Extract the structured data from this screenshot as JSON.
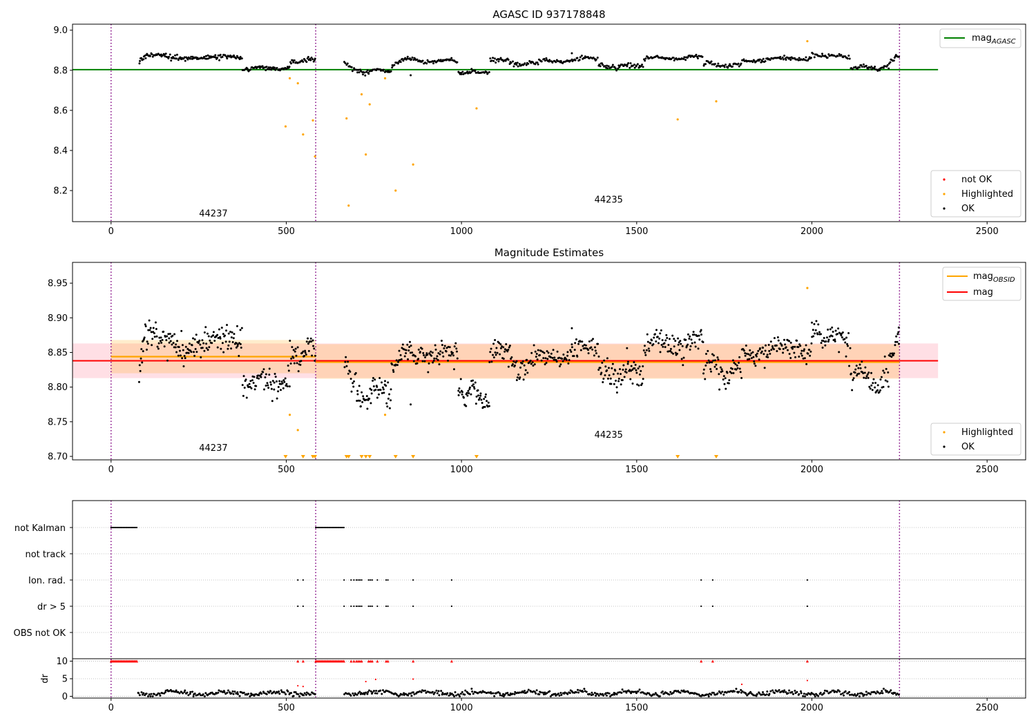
{
  "chart_data": [
    {
      "id": "panel1",
      "type": "scatter",
      "title": "AGASC ID 937178848",
      "xlim": [
        -110,
        2610
      ],
      "ylim": [
        8.045,
        9.03
      ],
      "xticks": [
        0,
        500,
        1000,
        1500,
        2000,
        2500
      ],
      "yticks": [
        8.2,
        8.4,
        8.6,
        8.8,
        9.0
      ],
      "ytick_labels": [
        "8.2",
        "8.4",
        "8.6",
        "8.8",
        "9.0"
      ],
      "grid": false,
      "vlines": [
        0,
        584,
        2250
      ],
      "obsid_labels": [
        {
          "text": "44237",
          "x": 292,
          "y": 8.07
        },
        {
          "text": "44235",
          "x": 1420,
          "y": 8.14
        }
      ],
      "hline": {
        "name": "mag_AGASC",
        "y": 8.803,
        "x0": -110,
        "x1": 2360,
        "color": "#008000"
      },
      "legend_top": {
        "placement": "top-right",
        "entries": [
          {
            "label": "mag",
            "sub": "AGASC",
            "color": "#008000"
          }
        ]
      },
      "legend_bottom": {
        "placement": "bottom-right",
        "entries": [
          {
            "label": "not OK",
            "color": "#ff0000"
          },
          {
            "label": "Highlighted",
            "color": "#ffa500"
          },
          {
            "label": "OK",
            "color": "#000000"
          }
        ]
      },
      "ok_segments": [
        {
          "x0": 80,
          "x1": 95,
          "y0": 8.84,
          "y1": 8.87,
          "amp": 0.006,
          "spread": 0.005,
          "n": 8
        },
        {
          "x0": 95,
          "x1": 375,
          "y0": 8.87,
          "y1": 8.86,
          "amp": 0.008,
          "spread": 0.006,
          "n": 120
        },
        {
          "x0": 375,
          "x1": 510,
          "y0": 8.81,
          "y1": 8.81,
          "amp": 0.006,
          "spread": 0.006,
          "n": 55
        },
        {
          "x0": 510,
          "x1": 584,
          "y0": 8.84,
          "y1": 8.855,
          "amp": 0.006,
          "spread": 0.006,
          "n": 30
        },
        {
          "x0": 665,
          "x1": 700,
          "y0": 8.84,
          "y1": 8.8,
          "amp": 0.004,
          "spread": 0.005,
          "n": 12
        },
        {
          "x0": 700,
          "x1": 800,
          "y0": 8.795,
          "y1": 8.8,
          "amp": 0.006,
          "spread": 0.006,
          "n": 40
        },
        {
          "x0": 800,
          "x1": 830,
          "y0": 8.82,
          "y1": 8.85,
          "amp": 0.004,
          "spread": 0.005,
          "n": 12
        },
        {
          "x0": 830,
          "x1": 990,
          "y0": 8.85,
          "y1": 8.845,
          "amp": 0.006,
          "spread": 0.005,
          "n": 60
        },
        {
          "x0": 990,
          "x1": 1080,
          "y0": 8.79,
          "y1": 8.79,
          "amp": 0.005,
          "spread": 0.005,
          "n": 35
        },
        {
          "x0": 1080,
          "x1": 1220,
          "y0": 8.85,
          "y1": 8.83,
          "amp": 0.008,
          "spread": 0.006,
          "n": 50
        },
        {
          "x0": 1220,
          "x1": 1390,
          "y0": 8.84,
          "y1": 8.86,
          "amp": 0.006,
          "spread": 0.005,
          "n": 60
        },
        {
          "x0": 1390,
          "x1": 1520,
          "y0": 8.82,
          "y1": 8.82,
          "amp": 0.005,
          "spread": 0.006,
          "n": 50
        },
        {
          "x0": 1520,
          "x1": 1690,
          "y0": 8.86,
          "y1": 8.865,
          "amp": 0.006,
          "spread": 0.005,
          "n": 65
        },
        {
          "x0": 1690,
          "x1": 1800,
          "y0": 8.83,
          "y1": 8.82,
          "amp": 0.006,
          "spread": 0.006,
          "n": 40
        },
        {
          "x0": 1800,
          "x1": 2000,
          "y0": 8.85,
          "y1": 8.86,
          "amp": 0.006,
          "spread": 0.005,
          "n": 75
        },
        {
          "x0": 2000,
          "x1": 2110,
          "y0": 8.88,
          "y1": 8.865,
          "amp": 0.006,
          "spread": 0.005,
          "n": 40
        },
        {
          "x0": 2110,
          "x1": 2220,
          "y0": 8.815,
          "y1": 8.81,
          "amp": 0.005,
          "spread": 0.006,
          "n": 40
        },
        {
          "x0": 2220,
          "x1": 2250,
          "y0": 8.84,
          "y1": 8.875,
          "amp": 0.004,
          "spread": 0.005,
          "n": 12
        }
      ],
      "ok_extra": [
        [
          855,
          8.775
        ],
        [
          1315,
          8.885
        ]
      ],
      "highlighted_points": [
        [
          498,
          8.52
        ],
        [
          510,
          8.76
        ],
        [
          533,
          8.735
        ],
        [
          548,
          8.48
        ],
        [
          576,
          8.55
        ],
        [
          582,
          8.37
        ],
        [
          672,
          8.56
        ],
        [
          678,
          8.125
        ],
        [
          715,
          8.68
        ],
        [
          727,
          8.38
        ],
        [
          738,
          8.63
        ],
        [
          782,
          8.76
        ],
        [
          812,
          8.2
        ],
        [
          862,
          8.33
        ],
        [
          1043,
          8.61
        ],
        [
          1617,
          8.555
        ],
        [
          1727,
          8.645
        ],
        [
          1987,
          8.945
        ]
      ]
    },
    {
      "id": "panel2",
      "type": "scatter",
      "title": "Magnitude Estimates",
      "xlim": [
        -110,
        2610
      ],
      "ylim": [
        8.695,
        8.98
      ],
      "xticks": [
        0,
        500,
        1000,
        1500,
        2000,
        2500
      ],
      "yticks": [
        8.7,
        8.75,
        8.8,
        8.85,
        8.9,
        8.95
      ],
      "ytick_labels": [
        "8.70",
        "8.75",
        "8.80",
        "8.85",
        "8.90",
        "8.95"
      ],
      "grid": false,
      "vlines": [
        0,
        584,
        2250
      ],
      "obsid_labels": [
        {
          "text": "44237",
          "x": 292,
          "y": 8.708
        },
        {
          "text": "44235",
          "x": 1420,
          "y": 8.727
        }
      ],
      "mag_band": {
        "y": 8.838,
        "lo": 8.813,
        "hi": 8.863,
        "x0": -110,
        "x1": 2360,
        "color": "#ff0000",
        "fill": "#ffc0cb"
      },
      "obsid_lines": [
        {
          "x0": 0,
          "x1": 584,
          "y": 8.844,
          "lo": 8.82,
          "hi": 8.868
        },
        {
          "x0": 584,
          "x1": 2250,
          "y": 8.836,
          "lo": 8.812,
          "hi": 8.862
        }
      ],
      "obsid_color": "#ffa500",
      "legend_top": {
        "placement": "top-right",
        "entries": [
          {
            "label": "mag",
            "sub": "OBSID",
            "color": "#ffa500"
          },
          {
            "label": "mag",
            "sub": "",
            "color": "#ff0000"
          }
        ]
      },
      "legend_bottom": {
        "placement": "bottom-right",
        "entries": [
          {
            "label": "Highlighted",
            "color": "#ffa500"
          },
          {
            "label": "OK",
            "color": "#000000"
          }
        ]
      },
      "ok_segments": [
        {
          "x0": 80,
          "x1": 95,
          "y0": 8.82,
          "y1": 8.87,
          "amp": 0.008,
          "spread": 0.008,
          "n": 10
        },
        {
          "x0": 95,
          "x1": 375,
          "y0": 8.865,
          "y1": 8.865,
          "amp": 0.01,
          "spread": 0.01,
          "n": 150
        },
        {
          "x0": 375,
          "x1": 510,
          "y0": 8.81,
          "y1": 8.805,
          "amp": 0.008,
          "spread": 0.009,
          "n": 70
        },
        {
          "x0": 510,
          "x1": 584,
          "y0": 8.84,
          "y1": 8.855,
          "amp": 0.008,
          "spread": 0.01,
          "n": 40
        },
        {
          "x0": 665,
          "x1": 700,
          "y0": 8.84,
          "y1": 8.8,
          "amp": 0.006,
          "spread": 0.008,
          "n": 15
        },
        {
          "x0": 700,
          "x1": 800,
          "y0": 8.79,
          "y1": 8.8,
          "amp": 0.01,
          "spread": 0.009,
          "n": 55
        },
        {
          "x0": 800,
          "x1": 830,
          "y0": 8.82,
          "y1": 8.85,
          "amp": 0.006,
          "spread": 0.008,
          "n": 15
        },
        {
          "x0": 830,
          "x1": 990,
          "y0": 8.85,
          "y1": 8.845,
          "amp": 0.006,
          "spread": 0.008,
          "n": 80
        },
        {
          "x0": 990,
          "x1": 1080,
          "y0": 8.795,
          "y1": 8.785,
          "amp": 0.008,
          "spread": 0.008,
          "n": 50
        },
        {
          "x0": 1080,
          "x1": 1220,
          "y0": 8.85,
          "y1": 8.83,
          "amp": 0.012,
          "spread": 0.009,
          "n": 70
        },
        {
          "x0": 1220,
          "x1": 1390,
          "y0": 8.84,
          "y1": 8.86,
          "amp": 0.008,
          "spread": 0.008,
          "n": 80
        },
        {
          "x0": 1390,
          "x1": 1520,
          "y0": 8.82,
          "y1": 8.82,
          "amp": 0.008,
          "spread": 0.009,
          "n": 70
        },
        {
          "x0": 1520,
          "x1": 1690,
          "y0": 8.86,
          "y1": 8.865,
          "amp": 0.008,
          "spread": 0.008,
          "n": 90
        },
        {
          "x0": 1690,
          "x1": 1800,
          "y0": 8.83,
          "y1": 8.82,
          "amp": 0.008,
          "spread": 0.009,
          "n": 55
        },
        {
          "x0": 1800,
          "x1": 2000,
          "y0": 8.85,
          "y1": 8.86,
          "amp": 0.008,
          "spread": 0.008,
          "n": 100
        },
        {
          "x0": 2000,
          "x1": 2110,
          "y0": 8.88,
          "y1": 8.865,
          "amp": 0.008,
          "spread": 0.008,
          "n": 55
        },
        {
          "x0": 2110,
          "x1": 2220,
          "y0": 8.815,
          "y1": 8.81,
          "amp": 0.008,
          "spread": 0.009,
          "n": 55
        },
        {
          "x0": 2220,
          "x1": 2250,
          "y0": 8.84,
          "y1": 8.875,
          "amp": 0.006,
          "spread": 0.008,
          "n": 15
        }
      ],
      "ok_extra": [
        [
          855,
          8.775
        ],
        [
          1315,
          8.885
        ],
        [
          360,
          8.888
        ],
        [
          2000,
          8.893
        ],
        [
          2248,
          8.886
        ]
      ],
      "highlighted_points": [
        [
          510,
          8.76
        ],
        [
          533,
          8.738
        ],
        [
          782,
          8.76
        ],
        [
          1987,
          8.943
        ]
      ],
      "offscale_markers": [
        498,
        548,
        576,
        582,
        672,
        678,
        715,
        727,
        738,
        812,
        862,
        1043,
        1617,
        1727
      ]
    },
    {
      "id": "panel3",
      "type": "scatter",
      "xlim": [
        -110,
        2610
      ],
      "xticks": [
        0,
        500,
        1000,
        1500,
        2000,
        2500
      ],
      "grid": true,
      "vlines": [
        0,
        584,
        2250
      ],
      "flag_rows": [
        "not Kalman",
        "not track",
        "Ion. rad.",
        "dr > 5",
        "OBS not OK"
      ],
      "flags": {
        "not Kalman": {
          "ranges": [
            [
              0,
              75
            ],
            [
              584,
              665
            ]
          ]
        },
        "not track": {
          "ranges": []
        },
        "Ion. rad.": {
          "xs": [
            533,
            548,
            665,
            685,
            693,
            700,
            705,
            710,
            715,
            735,
            740,
            745,
            760,
            785,
            790,
            862,
            972,
            1684,
            1717,
            1987
          ]
        },
        "dr > 5": {
          "xs": [
            533,
            548,
            665,
            685,
            693,
            700,
            705,
            710,
            715,
            735,
            740,
            745,
            760,
            785,
            790,
            862,
            972,
            1684,
            1717,
            1987
          ]
        },
        "OBS not OK": {
          "ranges": []
        }
      },
      "dr": {
        "ylabel": "dr",
        "ylim": [
          -0.5,
          10.5
        ],
        "yticks": [
          0,
          5,
          10
        ],
        "ytick_labels": [
          "0",
          "5",
          "10"
        ],
        "clip_ranges": [
          [
            0,
            75
          ],
          [
            584,
            665
          ]
        ],
        "clip_points": [
          533,
          548,
          685,
          693,
          700,
          705,
          710,
          715,
          735,
          740,
          745,
          760,
          785,
          790,
          862,
          972,
          1684,
          1717,
          1987
        ],
        "red_points": [
          [
            533,
            3.0
          ],
          [
            548,
            2.8
          ],
          [
            727,
            4.2
          ],
          [
            755,
            4.8
          ],
          [
            862,
            4.9
          ],
          [
            1800,
            3.4
          ],
          [
            1987,
            4.5
          ]
        ],
        "ok_ranges": [
          [
            75,
            584
          ],
          [
            665,
            2250
          ]
        ],
        "ok_level": 0.9,
        "ok_spread": 0.55,
        "ok_n": 700
      }
    }
  ]
}
